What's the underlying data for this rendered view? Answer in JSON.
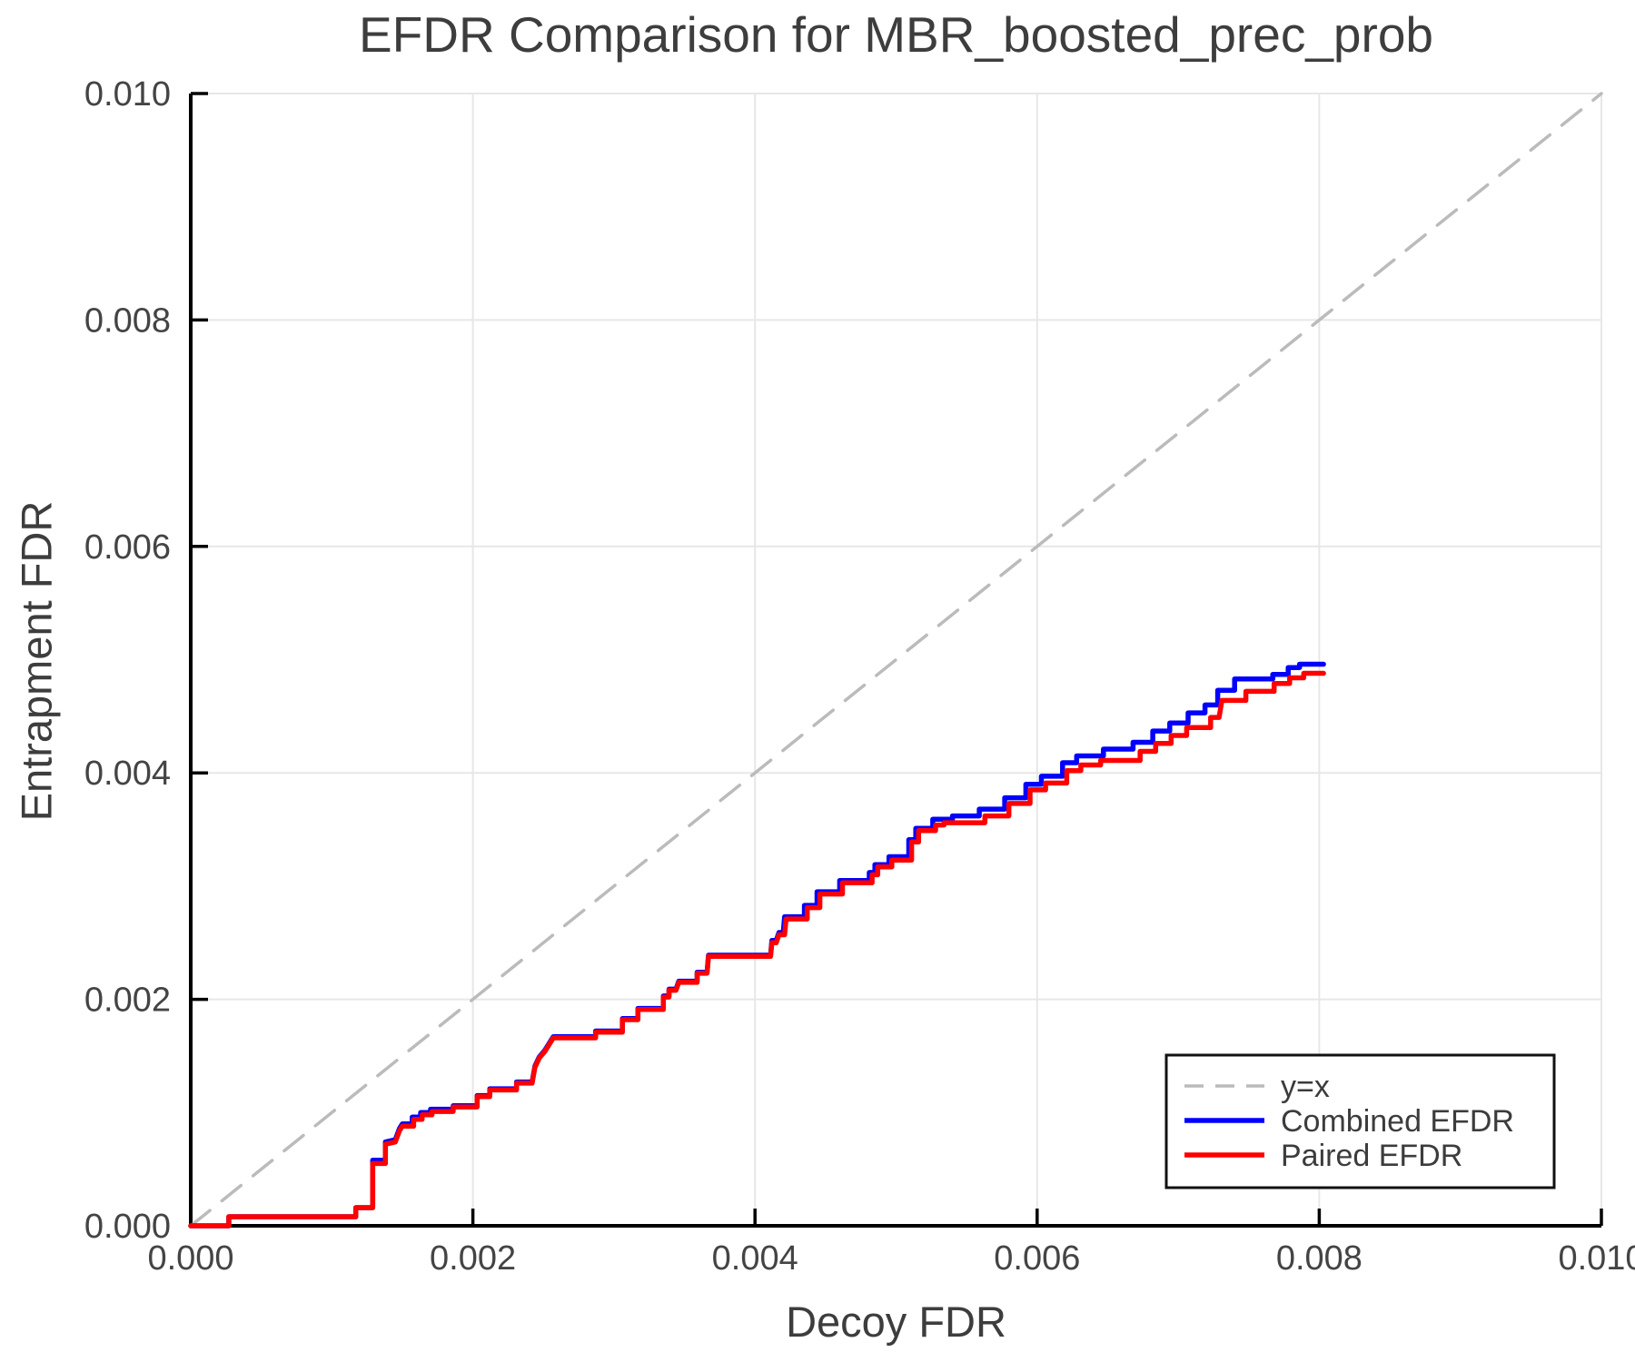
{
  "chart": {
    "title": "EFDR Comparison for MBR_boosted_prec_prob",
    "xlabel": "Decoy FDR",
    "ylabel": "Entrapment FDR"
  },
  "chart_data": {
    "type": "line",
    "title": "EFDR Comparison for MBR_boosted_prec_prob",
    "xlabel": "Decoy FDR",
    "ylabel": "Entrapment FDR",
    "xlim": [
      0,
      0.01
    ],
    "ylim": [
      0,
      0.01
    ],
    "grid": true,
    "grid_color": "#e7e7e7",
    "spine_color": "#000000",
    "legend_position": "lower right",
    "xticks": [
      {
        "value": 0.0,
        "label": "0.000"
      },
      {
        "value": 0.002,
        "label": "0.002"
      },
      {
        "value": 0.004,
        "label": "0.004"
      },
      {
        "value": 0.006,
        "label": "0.006"
      },
      {
        "value": 0.008,
        "label": "0.008"
      },
      {
        "value": 0.01,
        "label": "0.010"
      }
    ],
    "yticks": [
      {
        "value": 0.0,
        "label": "0.000"
      },
      {
        "value": 0.002,
        "label": "0.002"
      },
      {
        "value": 0.004,
        "label": "0.004"
      },
      {
        "value": 0.006,
        "label": "0.006"
      },
      {
        "value": 0.008,
        "label": "0.008"
      },
      {
        "value": 0.01,
        "label": "0.010"
      }
    ],
    "series": [
      {
        "name": "y=x",
        "color": "#bbbbbb",
        "style": "dashed",
        "width": 3.5,
        "points": [
          [
            0,
            0
          ],
          [
            0.01,
            0.01
          ]
        ]
      },
      {
        "name": "Combined EFDR",
        "color": "#0000ff",
        "style": "solid",
        "width": 5.5,
        "points": [
          [
            0,
            0
          ],
          [
            0.00027,
            0
          ],
          [
            0.00027,
            8e-05
          ],
          [
            0.00117,
            8e-05
          ],
          [
            0.00117,
            0.00016
          ],
          [
            0.00129,
            0.00016
          ],
          [
            0.00129,
            0.00058
          ],
          [
            0.00138,
            0.00058
          ],
          [
            0.00138,
            0.00074
          ],
          [
            0.00145,
            0.00076
          ],
          [
            0.00148,
            0.00086
          ],
          [
            0.0015,
            0.0009
          ],
          [
            0.00157,
            0.0009
          ],
          [
            0.00157,
            0.00096
          ],
          [
            0.00163,
            0.00096
          ],
          [
            0.00163,
            0.001
          ],
          [
            0.0017,
            0.001
          ],
          [
            0.0017,
            0.00103
          ],
          [
            0.00186,
            0.00103
          ],
          [
            0.00186,
            0.00106
          ],
          [
            0.00203,
            0.00106
          ],
          [
            0.00203,
            0.00115
          ],
          [
            0.00212,
            0.00115
          ],
          [
            0.00212,
            0.00121
          ],
          [
            0.00231,
            0.00121
          ],
          [
            0.00231,
            0.00127
          ],
          [
            0.00242,
            0.00127
          ],
          [
            0.00244,
            0.00141
          ],
          [
            0.00247,
            0.00149
          ],
          [
            0.00251,
            0.00155
          ],
          [
            0.00254,
            0.00161
          ],
          [
            0.00257,
            0.00167
          ],
          [
            0.00287,
            0.00167
          ],
          [
            0.00287,
            0.00172
          ],
          [
            0.00306,
            0.00172
          ],
          [
            0.00306,
            0.00183
          ],
          [
            0.00317,
            0.00183
          ],
          [
            0.00317,
            0.00192
          ],
          [
            0.00335,
            0.00192
          ],
          [
            0.00335,
            0.00203
          ],
          [
            0.00339,
            0.00203
          ],
          [
            0.00339,
            0.00209
          ],
          [
            0.00344,
            0.00209
          ],
          [
            0.00346,
            0.00216
          ],
          [
            0.00359,
            0.00216
          ],
          [
            0.00359,
            0.00224
          ],
          [
            0.00366,
            0.00224
          ],
          [
            0.00367,
            0.00239
          ],
          [
            0.00411,
            0.00239
          ],
          [
            0.00412,
            0.00252
          ],
          [
            0.00415,
            0.00252
          ],
          [
            0.00417,
            0.00259
          ],
          [
            0.0042,
            0.00259
          ],
          [
            0.00421,
            0.00273
          ],
          [
            0.00435,
            0.00273
          ],
          [
            0.00435,
            0.00283
          ],
          [
            0.00444,
            0.00283
          ],
          [
            0.00444,
            0.00295
          ],
          [
            0.0046,
            0.00295
          ],
          [
            0.0046,
            0.00305
          ],
          [
            0.00481,
            0.00305
          ],
          [
            0.00481,
            0.00312
          ],
          [
            0.00485,
            0.00312
          ],
          [
            0.00485,
            0.00319
          ],
          [
            0.00495,
            0.00319
          ],
          [
            0.00495,
            0.00326
          ],
          [
            0.00509,
            0.00326
          ],
          [
            0.00509,
            0.00341
          ],
          [
            0.00514,
            0.00341
          ],
          [
            0.00514,
            0.00351
          ],
          [
            0.00526,
            0.00351
          ],
          [
            0.00526,
            0.00359
          ],
          [
            0.0054,
            0.00359
          ],
          [
            0.0054,
            0.00362
          ],
          [
            0.00559,
            0.00362
          ],
          [
            0.00559,
            0.00368
          ],
          [
            0.00577,
            0.00368
          ],
          [
            0.00577,
            0.00378
          ],
          [
            0.00592,
            0.00378
          ],
          [
            0.00592,
            0.0039
          ],
          [
            0.00603,
            0.0039
          ],
          [
            0.00603,
            0.00397
          ],
          [
            0.00618,
            0.00397
          ],
          [
            0.00618,
            0.00409
          ],
          [
            0.00628,
            0.00409
          ],
          [
            0.00628,
            0.00415
          ],
          [
            0.00647,
            0.00415
          ],
          [
            0.00647,
            0.00421
          ],
          [
            0.00668,
            0.00421
          ],
          [
            0.00668,
            0.00427
          ],
          [
            0.00682,
            0.00427
          ],
          [
            0.00682,
            0.00437
          ],
          [
            0.00694,
            0.00437
          ],
          [
            0.00694,
            0.00444
          ],
          [
            0.00707,
            0.00444
          ],
          [
            0.00707,
            0.00453
          ],
          [
            0.00719,
            0.00453
          ],
          [
            0.00719,
            0.0046
          ],
          [
            0.00728,
            0.0046
          ],
          [
            0.00728,
            0.00473
          ],
          [
            0.0074,
            0.00473
          ],
          [
            0.0074,
            0.00483
          ],
          [
            0.00767,
            0.00483
          ],
          [
            0.00767,
            0.00487
          ],
          [
            0.00778,
            0.00487
          ],
          [
            0.00778,
            0.00493
          ],
          [
            0.00786,
            0.00493
          ],
          [
            0.00786,
            0.00496
          ],
          [
            0.00803,
            0.00496
          ]
        ]
      },
      {
        "name": "Paired EFDR",
        "color": "#ff0000",
        "style": "solid",
        "width": 5.5,
        "points": [
          [
            0,
            0
          ],
          [
            0.00027,
            0
          ],
          [
            0.00027,
            8e-05
          ],
          [
            0.00117,
            8e-05
          ],
          [
            0.00117,
            0.00016
          ],
          [
            0.00129,
            0.00016
          ],
          [
            0.00129,
            0.00055
          ],
          [
            0.00138,
            0.00055
          ],
          [
            0.00138,
            0.00072
          ],
          [
            0.00145,
            0.00074
          ],
          [
            0.00148,
            0.00084
          ],
          [
            0.0015,
            0.00088
          ],
          [
            0.00158,
            0.00088
          ],
          [
            0.00158,
            0.00094
          ],
          [
            0.00164,
            0.00094
          ],
          [
            0.00164,
            0.00098
          ],
          [
            0.00171,
            0.00098
          ],
          [
            0.00171,
            0.00101
          ],
          [
            0.00186,
            0.00101
          ],
          [
            0.00186,
            0.00105
          ],
          [
            0.00203,
            0.00105
          ],
          [
            0.00203,
            0.00114
          ],
          [
            0.00212,
            0.00114
          ],
          [
            0.00212,
            0.0012
          ],
          [
            0.00231,
            0.0012
          ],
          [
            0.00231,
            0.00126
          ],
          [
            0.00242,
            0.00126
          ],
          [
            0.00244,
            0.0014
          ],
          [
            0.00247,
            0.00148
          ],
          [
            0.00251,
            0.00154
          ],
          [
            0.00254,
            0.0016
          ],
          [
            0.00257,
            0.00166
          ],
          [
            0.00287,
            0.00166
          ],
          [
            0.00287,
            0.00171
          ],
          [
            0.00306,
            0.00171
          ],
          [
            0.00306,
            0.00182
          ],
          [
            0.00317,
            0.00182
          ],
          [
            0.00317,
            0.00191
          ],
          [
            0.00335,
            0.00191
          ],
          [
            0.00335,
            0.00202
          ],
          [
            0.00339,
            0.00202
          ],
          [
            0.00339,
            0.00208
          ],
          [
            0.00344,
            0.00208
          ],
          [
            0.00346,
            0.00215
          ],
          [
            0.00359,
            0.00215
          ],
          [
            0.00359,
            0.00223
          ],
          [
            0.00366,
            0.00223
          ],
          [
            0.00367,
            0.00238
          ],
          [
            0.00411,
            0.00238
          ],
          [
            0.00412,
            0.0025
          ],
          [
            0.00415,
            0.0025
          ],
          [
            0.00417,
            0.00257
          ],
          [
            0.00421,
            0.00257
          ],
          [
            0.00422,
            0.00271
          ],
          [
            0.00437,
            0.00271
          ],
          [
            0.00437,
            0.00281
          ],
          [
            0.00446,
            0.00281
          ],
          [
            0.00446,
            0.00293
          ],
          [
            0.00462,
            0.00293
          ],
          [
            0.00462,
            0.00303
          ],
          [
            0.00483,
            0.00303
          ],
          [
            0.00483,
            0.0031
          ],
          [
            0.00487,
            0.0031
          ],
          [
            0.00487,
            0.00317
          ],
          [
            0.00497,
            0.00317
          ],
          [
            0.00497,
            0.00323
          ],
          [
            0.00511,
            0.00323
          ],
          [
            0.00511,
            0.00339
          ],
          [
            0.00516,
            0.00339
          ],
          [
            0.00516,
            0.00349
          ],
          [
            0.00528,
            0.00349
          ],
          [
            0.00528,
            0.00354
          ],
          [
            0.00534,
            0.00354
          ],
          [
            0.00534,
            0.00356
          ],
          [
            0.00563,
            0.00356
          ],
          [
            0.00563,
            0.00362
          ],
          [
            0.0058,
            0.00362
          ],
          [
            0.0058,
            0.00373
          ],
          [
            0.00595,
            0.00373
          ],
          [
            0.00595,
            0.00385
          ],
          [
            0.00606,
            0.00385
          ],
          [
            0.00606,
            0.00391
          ],
          [
            0.00621,
            0.00391
          ],
          [
            0.00621,
            0.00402
          ],
          [
            0.00631,
            0.00402
          ],
          [
            0.00631,
            0.00407
          ],
          [
            0.00645,
            0.00407
          ],
          [
            0.00645,
            0.00411
          ],
          [
            0.00673,
            0.00411
          ],
          [
            0.00673,
            0.00419
          ],
          [
            0.00684,
            0.00419
          ],
          [
            0.00684,
            0.00426
          ],
          [
            0.00695,
            0.00426
          ],
          [
            0.00695,
            0.00433
          ],
          [
            0.00706,
            0.00433
          ],
          [
            0.00706,
            0.0044
          ],
          [
            0.00723,
            0.0044
          ],
          [
            0.00723,
            0.00449
          ],
          [
            0.00729,
            0.00449
          ],
          [
            0.00731,
            0.00464
          ],
          [
            0.00748,
            0.00464
          ],
          [
            0.00748,
            0.00472
          ],
          [
            0.00768,
            0.00472
          ],
          [
            0.00768,
            0.00479
          ],
          [
            0.00779,
            0.00479
          ],
          [
            0.00779,
            0.00484
          ],
          [
            0.00789,
            0.00484
          ],
          [
            0.00789,
            0.00488
          ],
          [
            0.00803,
            0.00488
          ]
        ]
      }
    ]
  }
}
